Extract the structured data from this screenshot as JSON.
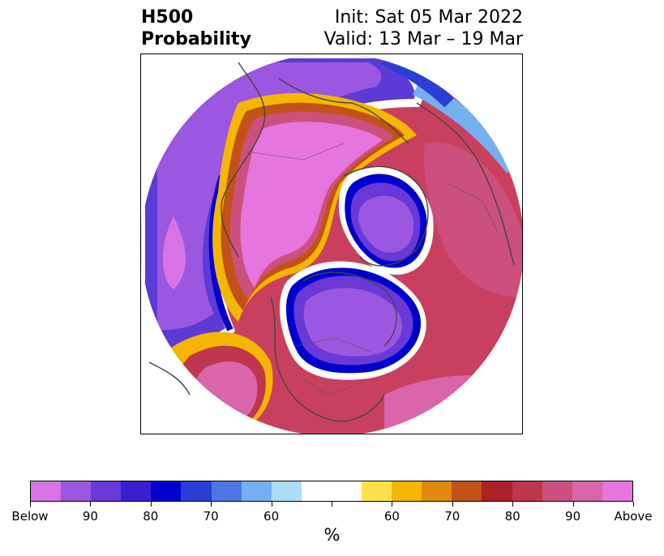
{
  "title": {
    "left_line1": "H500",
    "left_line2": "Probability",
    "right_line1": "Init: Sat 05 Mar 2022",
    "right_line2": "Valid: 13 Mar – 19 Mar"
  },
  "map": {
    "projection": "north-polar-stereographic",
    "features": [
      "coastlines",
      "country-borders",
      "state-province-borders"
    ],
    "anomalies": [
      {
        "name": "trough",
        "region": "North America",
        "sign": "below"
      },
      {
        "name": "trough",
        "region": "Arctic / northern Russia",
        "sign": "below"
      },
      {
        "name": "ridge",
        "region": "North Pacific / Alaska",
        "sign": "above"
      },
      {
        "name": "ridge",
        "region": "Europe / North Atlantic",
        "sign": "above"
      },
      {
        "name": "trough",
        "region": "Central Asia",
        "sign": "below"
      }
    ]
  },
  "colorbar": {
    "colors": [
      "#d873e6",
      "#9b57e0",
      "#6b38d8",
      "#3a1fd0",
      "#0000cc",
      "#2a3ed6",
      "#4c76e4",
      "#74b0ef",
      "#acdcf8",
      "#ffffff",
      "#ffffff",
      "#fde14b",
      "#f4b600",
      "#e0880f",
      "#c25217",
      "#ad2127",
      "#c0364e",
      "#cc507e",
      "#d965ab",
      "#e676dd"
    ],
    "tick_labels": [
      "Below",
      "90",
      "80",
      "70",
      "60",
      "60",
      "70",
      "80",
      "90",
      "Above"
    ],
    "unit": "%"
  }
}
